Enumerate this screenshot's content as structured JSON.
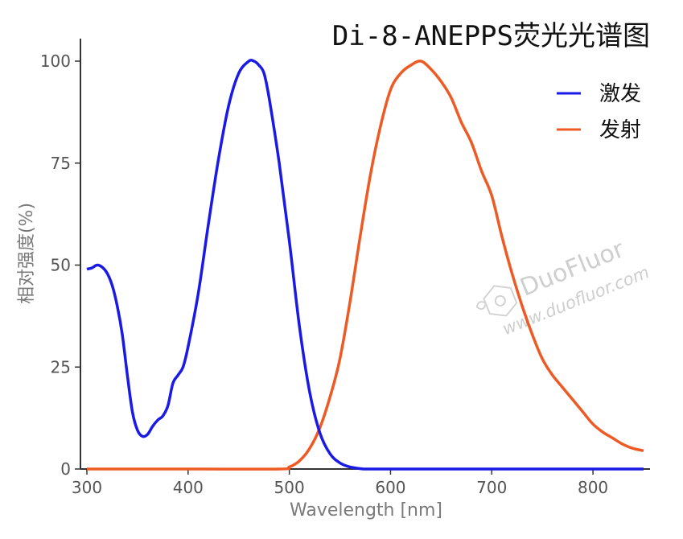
{
  "chart_data": {
    "type": "line",
    "title": "Di-8-ANEPPS荧光光谱图",
    "xlabel": "Wavelength [nm]",
    "ylabel": "相对强度(%)",
    "xlim": [
      300,
      850
    ],
    "ylim": [
      0,
      100
    ],
    "xticks": [
      "300",
      "400",
      "500",
      "600",
      "700",
      "800"
    ],
    "yticks": [
      "0",
      "25",
      "50",
      "75",
      "100"
    ],
    "grid": false,
    "legend_position": "top-right",
    "series": [
      {
        "name": "激发",
        "color": "#1a1ae6",
        "x": [
          300,
          305,
          310,
          315,
          320,
          325,
          330,
          335,
          340,
          345,
          350,
          355,
          360,
          365,
          370,
          375,
          380,
          385,
          390,
          395,
          400,
          410,
          420,
          430,
          440,
          450,
          460,
          465,
          470,
          475,
          480,
          490,
          500,
          510,
          520,
          530,
          540,
          550,
          560,
          570,
          576,
          600,
          700,
          800,
          850
        ],
        "values": [
          49,
          49.3,
          50,
          49.5,
          48,
          45,
          40,
          33,
          23,
          14,
          9.5,
          8,
          8.5,
          10.5,
          12,
          13,
          15.5,
          21,
          23,
          25,
          30,
          43,
          60,
          76,
          89,
          97,
          100,
          100,
          99,
          97,
          91,
          75,
          56,
          35,
          19,
          9,
          3.8,
          1.5,
          0.5,
          0.1,
          0,
          0,
          0,
          0,
          0
        ]
      },
      {
        "name": "发射",
        "color": "#ee5a24",
        "x": [
          300,
          400,
          490,
          500,
          510,
          520,
          530,
          540,
          550,
          560,
          570,
          580,
          590,
          600,
          610,
          620,
          630,
          640,
          650,
          660,
          670,
          680,
          690,
          700,
          710,
          720,
          730,
          740,
          750,
          760,
          770,
          780,
          790,
          800,
          810,
          820,
          830,
          840,
          850
        ],
        "values": [
          0,
          0,
          0,
          0.5,
          2,
          5,
          10,
          17.5,
          27,
          41,
          57,
          72,
          84,
          93,
          97,
          99,
          100,
          98,
          95,
          91,
          85,
          80,
          73,
          67,
          57,
          48,
          40,
          33,
          27,
          23,
          20,
          17,
          14,
          11,
          9,
          7.5,
          6,
          5,
          4.5
        ]
      }
    ]
  },
  "watermark": {
    "brand": "DuoFluor",
    "url": "www.duofluor.com",
    "icon": "duofluor-logo-icon"
  }
}
